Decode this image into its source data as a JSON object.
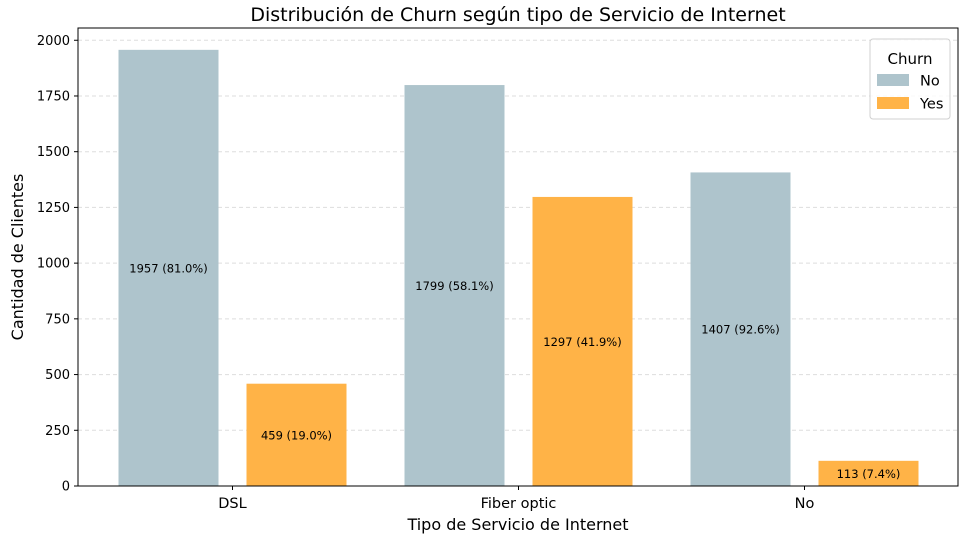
{
  "chart_data": {
    "type": "bar",
    "title": "Distribución de Churn según tipo de Servicio de Internet",
    "xlabel": "Tipo de Servicio de Internet",
    "ylabel": "Cantidad de Clientes",
    "categories": [
      "DSL",
      "Fiber optic",
      "No"
    ],
    "series": [
      {
        "name": "No",
        "color": "#aec4cc",
        "values": [
          1957,
          1799,
          1407
        ],
        "labels": [
          "1957 (81.0%)",
          "1799 (58.1%)",
          "1407 (92.6%)"
        ]
      },
      {
        "name": "Yes",
        "color": "#ffb347",
        "values": [
          459,
          1297,
          113
        ],
        "labels": [
          "459 (19.0%)",
          "1297 (41.9%)",
          "113 (7.4%)"
        ]
      }
    ],
    "yticks": [
      0,
      250,
      500,
      750,
      1000,
      1250,
      1500,
      1750,
      2000
    ],
    "ylim": [
      0,
      2055
    ],
    "grid": "horizontal-dashed",
    "legend": {
      "title": "Churn",
      "placement": "top-right"
    }
  }
}
